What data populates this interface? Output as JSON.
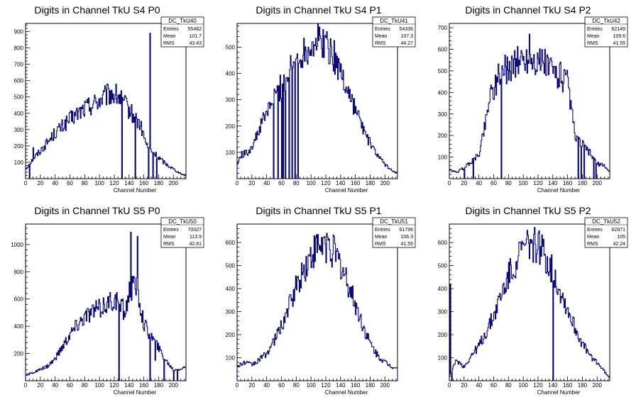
{
  "chart_data": [
    {
      "type": "histogram",
      "title": "Digits in Channel TkU S4 P0",
      "xlabel": "Channel Number",
      "xlim": [
        0,
        217
      ],
      "ylim": [
        0,
        950
      ],
      "xticks": [
        0,
        20,
        40,
        60,
        80,
        100,
        120,
        140,
        160,
        180,
        200
      ],
      "yticks": [
        100,
        200,
        300,
        400,
        500,
        600,
        700,
        800,
        900
      ],
      "stats": {
        "name": "DC_TkU40",
        "entries": "55482",
        "mean": "101.7",
        "rms": "43.43"
      },
      "profile": [
        [
          0,
          60
        ],
        [
          10,
          120
        ],
        [
          20,
          170
        ],
        [
          40,
          280
        ],
        [
          60,
          360
        ],
        [
          80,
          430
        ],
        [
          100,
          480
        ],
        [
          115,
          520
        ],
        [
          125,
          505
        ],
        [
          140,
          420
        ],
        [
          155,
          330
        ],
        [
          165,
          190
        ],
        [
          175,
          150
        ],
        [
          190,
          90
        ],
        [
          200,
          60
        ],
        [
          210,
          30
        ],
        [
          217,
          20
        ]
      ],
      "spikes": [
        [
          5,
          0
        ],
        [
          10,
          190
        ],
        [
          130,
          0
        ],
        [
          148,
          0
        ],
        [
          166,
          0
        ],
        [
          168,
          890
        ],
        [
          172,
          0
        ],
        [
          177,
          0
        ]
      ]
    },
    {
      "type": "histogram",
      "title": "Digits in Channel TkU S4 P1",
      "xlabel": "Channel Number",
      "xlim": [
        0,
        217
      ],
      "ylim": [
        0,
        590
      ],
      "xticks": [
        0,
        20,
        40,
        60,
        80,
        100,
        120,
        140,
        160,
        180,
        200
      ],
      "yticks": [
        100,
        200,
        300,
        400,
        500
      ],
      "stats": {
        "name": "DC_TkU41",
        "entries": "54336",
        "mean": "107.3",
        "rms": "44.27"
      },
      "profile": [
        [
          0,
          50
        ],
        [
          5,
          90
        ],
        [
          15,
          100
        ],
        [
          25,
          150
        ],
        [
          35,
          220
        ],
        [
          45,
          280
        ],
        [
          55,
          330
        ],
        [
          65,
          380
        ],
        [
          75,
          430
        ],
        [
          85,
          470
        ],
        [
          95,
          500
        ],
        [
          105,
          520
        ],
        [
          115,
          525
        ],
        [
          125,
          500
        ],
        [
          135,
          440
        ],
        [
          145,
          370
        ],
        [
          155,
          300
        ],
        [
          165,
          230
        ],
        [
          175,
          160
        ],
        [
          185,
          110
        ],
        [
          195,
          70
        ],
        [
          205,
          40
        ],
        [
          217,
          20
        ]
      ],
      "spikes": [
        [
          49,
          0
        ],
        [
          55,
          0
        ],
        [
          60,
          0
        ],
        [
          62,
          0
        ],
        [
          65,
          0
        ],
        [
          70,
          0
        ],
        [
          74,
          0
        ],
        [
          78,
          0
        ],
        [
          82,
          0
        ]
      ]
    },
    {
      "type": "histogram",
      "title": "Digits in Channel TkU S4 P2",
      "xlabel": "Channel Number",
      "xlim": [
        0,
        217
      ],
      "ylim": [
        0,
        720
      ],
      "xticks": [
        0,
        20,
        40,
        60,
        80,
        100,
        120,
        140,
        160,
        180,
        200
      ],
      "yticks": [
        100,
        200,
        300,
        400,
        500,
        600,
        700
      ],
      "stats": {
        "name": "DC_TkU42",
        "entries": "62149",
        "mean": "109.6",
        "rms": "41.55"
      },
      "profile": [
        [
          0,
          40
        ],
        [
          10,
          30
        ],
        [
          20,
          50
        ],
        [
          30,
          80
        ],
        [
          40,
          110
        ],
        [
          50,
          280
        ],
        [
          55,
          400
        ],
        [
          60,
          420
        ],
        [
          70,
          500
        ],
        [
          80,
          510
        ],
        [
          90,
          540
        ],
        [
          100,
          550
        ],
        [
          110,
          560
        ],
        [
          120,
          540
        ],
        [
          130,
          530
        ],
        [
          140,
          500
        ],
        [
          150,
          480
        ],
        [
          160,
          440
        ],
        [
          165,
          330
        ],
        [
          170,
          190
        ],
        [
          180,
          160
        ],
        [
          190,
          120
        ],
        [
          200,
          70
        ],
        [
          210,
          60
        ],
        [
          217,
          30
        ]
      ],
      "spikes": [
        [
          20,
          0
        ],
        [
          32,
          0
        ],
        [
          70,
          0
        ],
        [
          108,
          670
        ],
        [
          174,
          0
        ],
        [
          178,
          0
        ],
        [
          182,
          0
        ],
        [
          195,
          0
        ],
        [
          198,
          0
        ]
      ]
    },
    {
      "type": "histogram",
      "title": "Digits in Channel TkU S5 P0",
      "xlabel": "Channel Number",
      "xlim": [
        0,
        217
      ],
      "ylim": [
        0,
        1150
      ],
      "xticks": [
        0,
        20,
        40,
        60,
        80,
        100,
        120,
        140,
        160,
        180,
        200
      ],
      "yticks": [
        200,
        400,
        600,
        800,
        1000
      ],
      "stats": {
        "name": "DC_TkU50",
        "entries": "70027",
        "mean": "113.9",
        "rms": "42.81"
      },
      "profile": [
        [
          0,
          40
        ],
        [
          10,
          60
        ],
        [
          20,
          80
        ],
        [
          30,
          110
        ],
        [
          40,
          160
        ],
        [
          50,
          250
        ],
        [
          60,
          340
        ],
        [
          70,
          410
        ],
        [
          80,
          470
        ],
        [
          90,
          500
        ],
        [
          100,
          530
        ],
        [
          110,
          560
        ],
        [
          120,
          590
        ],
        [
          125,
          560
        ],
        [
          135,
          500
        ],
        [
          140,
          650
        ],
        [
          150,
          700
        ],
        [
          160,
          420
        ],
        [
          170,
          330
        ],
        [
          180,
          240
        ],
        [
          190,
          150
        ],
        [
          200,
          80
        ],
        [
          210,
          90
        ],
        [
          217,
          100
        ]
      ],
      "spikes": [
        [
          126,
          0
        ],
        [
          131,
          600
        ],
        [
          142,
          1090
        ],
        [
          151,
          1060
        ],
        [
          168,
          0
        ],
        [
          175,
          150
        ],
        [
          187,
          0
        ],
        [
          200,
          0
        ],
        [
          205,
          0
        ]
      ]
    },
    {
      "type": "histogram",
      "title": "Digits in Channel TkU S5 P1",
      "xlabel": "Channel Number",
      "xlim": [
        0,
        217
      ],
      "ylim": [
        0,
        680
      ],
      "xticks": [
        0,
        20,
        40,
        60,
        80,
        100,
        120,
        140,
        160,
        180,
        200
      ],
      "yticks": [
        100,
        200,
        300,
        400,
        500,
        600
      ],
      "stats": {
        "name": "DC_TkU51",
        "entries": "61796",
        "mean": "106.3",
        "rms": "41.55"
      },
      "profile": [
        [
          0,
          60
        ],
        [
          10,
          80
        ],
        [
          20,
          70
        ],
        [
          30,
          90
        ],
        [
          40,
          120
        ],
        [
          50,
          170
        ],
        [
          60,
          240
        ],
        [
          70,
          320
        ],
        [
          80,
          410
        ],
        [
          90,
          480
        ],
        [
          100,
          540
        ],
        [
          110,
          580
        ],
        [
          120,
          590
        ],
        [
          130,
          560
        ],
        [
          140,
          500
        ],
        [
          150,
          420
        ],
        [
          160,
          330
        ],
        [
          170,
          240
        ],
        [
          180,
          160
        ],
        [
          190,
          110
        ],
        [
          200,
          80
        ],
        [
          210,
          60
        ],
        [
          217,
          55
        ]
      ],
      "spikes": [
        [
          116,
          620
        ],
        [
          122,
          625
        ]
      ]
    },
    {
      "type": "histogram",
      "title": "Digits in Channel TkU S5 P2",
      "xlabel": "Channel Number",
      "xlim": [
        0,
        217
      ],
      "ylim": [
        0,
        680
      ],
      "xticks": [
        0,
        20,
        40,
        60,
        80,
        100,
        120,
        140,
        160,
        180,
        200
      ],
      "yticks": [
        100,
        200,
        300,
        400,
        500,
        600
      ],
      "stats": {
        "name": "DC_TkU52",
        "entries": "62871",
        "mean": "105",
        "rms": "42.24"
      },
      "profile": [
        [
          0,
          20
        ],
        [
          10,
          90
        ],
        [
          20,
          60
        ],
        [
          30,
          110
        ],
        [
          40,
          150
        ],
        [
          50,
          210
        ],
        [
          60,
          280
        ],
        [
          70,
          370
        ],
        [
          80,
          450
        ],
        [
          90,
          520
        ],
        [
          100,
          570
        ],
        [
          110,
          600
        ],
        [
          120,
          590
        ],
        [
          130,
          540
        ],
        [
          140,
          470
        ],
        [
          150,
          390
        ],
        [
          160,
          310
        ],
        [
          170,
          230
        ],
        [
          180,
          160
        ],
        [
          190,
          110
        ],
        [
          200,
          80
        ],
        [
          210,
          40
        ],
        [
          217,
          10
        ]
      ],
      "spikes": [
        [
          1,
          420
        ],
        [
          3,
          0
        ],
        [
          140,
          0
        ]
      ]
    }
  ]
}
